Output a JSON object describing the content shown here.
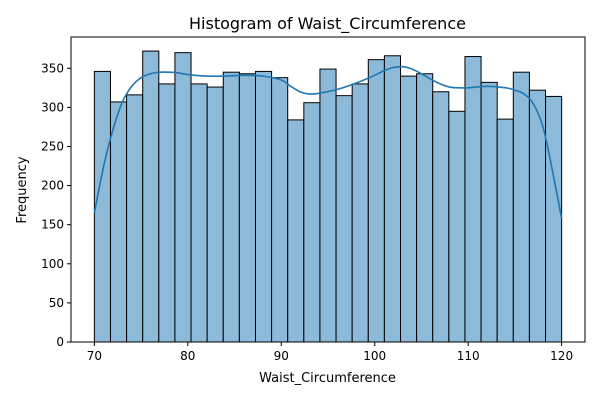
{
  "chart_data": {
    "type": "bar",
    "title": "Histogram of Waist_Circumference",
    "xlabel": "Waist_Circumference",
    "ylabel": "Frequency",
    "xlim": [
      67.5,
      122.5
    ],
    "ylim": [
      0,
      390
    ],
    "x_ticks": [
      70,
      80,
      90,
      100,
      110,
      120
    ],
    "y_ticks": [
      0,
      50,
      100,
      150,
      200,
      250,
      300,
      350
    ],
    "bin_start": 70,
    "bin_end": 120,
    "values": [
      346,
      307,
      316,
      372,
      330,
      370,
      330,
      326,
      345,
      343,
      346,
      338,
      284,
      306,
      349,
      315,
      330,
      361,
      366,
      340,
      343,
      320,
      295,
      365,
      332,
      285,
      345,
      322,
      314
    ],
    "kde": {
      "x": [
        70,
        71,
        72,
        73,
        74,
        75,
        76,
        77,
        78,
        79,
        80,
        82,
        84,
        86,
        88,
        90,
        91,
        92,
        93,
        94,
        96,
        98,
        100,
        101,
        102,
        103,
        104,
        105,
        106,
        107,
        108,
        109,
        110,
        112,
        114,
        115,
        116,
        117,
        118,
        119,
        120
      ],
      "y": [
        165,
        225,
        272,
        307,
        327,
        338,
        343,
        345,
        345,
        344,
        342,
        340,
        340,
        341,
        340,
        335,
        327,
        320,
        317,
        318,
        323,
        331,
        341,
        347,
        351,
        352,
        349,
        343,
        336,
        330,
        326,
        325,
        325,
        327,
        325,
        322,
        317,
        304,
        275,
        220,
        158
      ]
    },
    "colors": {
      "bar_fill": "#8ebad9",
      "bar_edge": "#000000",
      "kde_line": "#1f77b4"
    }
  }
}
